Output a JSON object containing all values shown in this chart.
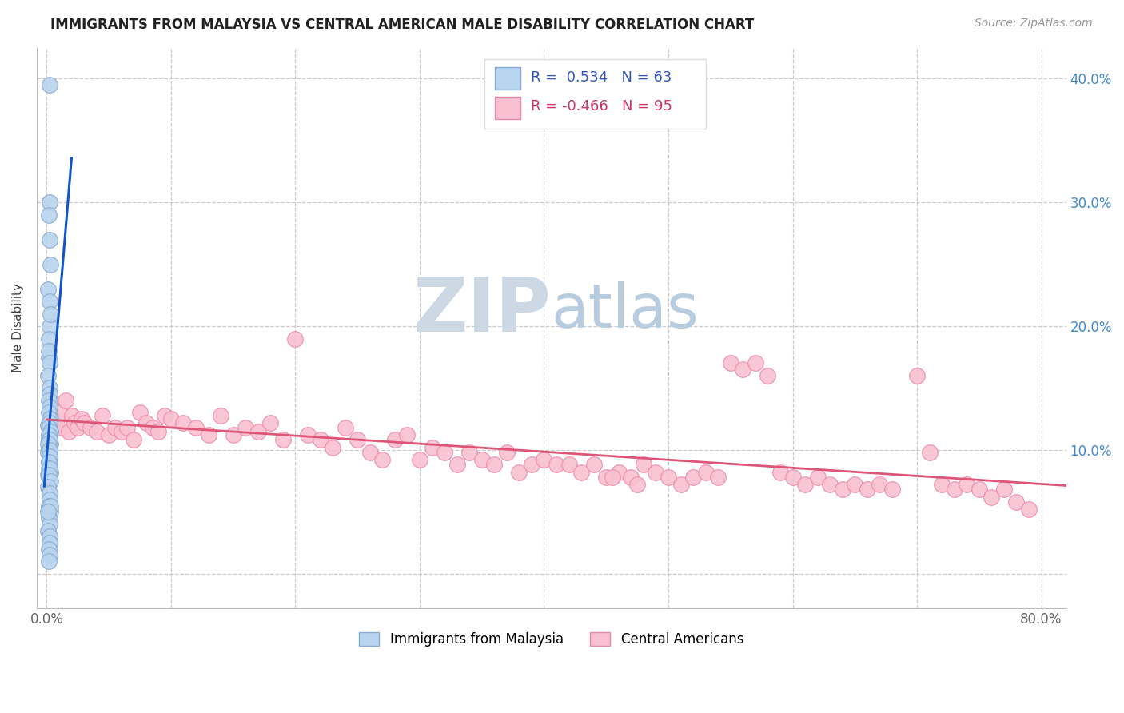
{
  "title": "IMMIGRANTS FROM MALAYSIA VS CENTRAL AMERICAN MALE DISABILITY CORRELATION CHART",
  "source": "Source: ZipAtlas.com",
  "ylabel": "Male Disability",
  "xlim": [
    -0.008,
    0.82
  ],
  "ylim": [
    -0.028,
    0.425
  ],
  "x_ticks": [
    0.0,
    0.1,
    0.2,
    0.3,
    0.4,
    0.5,
    0.6,
    0.7,
    0.8
  ],
  "y_ticks": [
    0.0,
    0.1,
    0.2,
    0.3,
    0.4
  ],
  "grid_color": "#cccccc",
  "background_color": "#ffffff",
  "malaysia_color": "#b8d4ee",
  "central_color": "#f8c0d0",
  "malaysia_edge": "#88aacc",
  "central_edge": "#ee88aa",
  "trend_blue": "#1155cc",
  "trend_blue_dash": "#88aacc",
  "trend_pink": "#dd5577",
  "wm_zip_color": "#ccd8e4",
  "wm_atlas_color": "#b8cce0",
  "malaysia_x": [
    0.0025,
    0.002,
    0.0018,
    0.0022,
    0.0015,
    0.0028,
    0.0012,
    0.002,
    0.0025,
    0.0018,
    0.003,
    0.0015,
    0.0022,
    0.001,
    0.0025,
    0.002,
    0.0018,
    0.0022,
    0.0015,
    0.0028,
    0.0012,
    0.002,
    0.0025,
    0.0018,
    0.003,
    0.0015,
    0.0022,
    0.001,
    0.0025,
    0.002,
    0.0018,
    0.0022,
    0.0015,
    0.0028,
    0.0012,
    0.002,
    0.0025,
    0.0018,
    0.003,
    0.0015,
    0.0022,
    0.001,
    0.0025,
    0.002,
    0.0018,
    0.0022,
    0.0015,
    0.0028,
    0.0012,
    0.002,
    0.0025,
    0.0018,
    0.003,
    0.0015,
    0.0022,
    0.001,
    0.0025,
    0.002,
    0.0018,
    0.0022,
    0.0015,
    0.0028,
    0.0012
  ],
  "malaysia_y": [
    0.395,
    0.27,
    0.175,
    0.3,
    0.29,
    0.25,
    0.23,
    0.22,
    0.2,
    0.19,
    0.21,
    0.18,
    0.17,
    0.16,
    0.15,
    0.145,
    0.14,
    0.135,
    0.13,
    0.125,
    0.12,
    0.115,
    0.11,
    0.108,
    0.105,
    0.102,
    0.1,
    0.098,
    0.095,
    0.092,
    0.09,
    0.088,
    0.085,
    0.082,
    0.08,
    0.125,
    0.122,
    0.118,
    0.115,
    0.112,
    0.108,
    0.105,
    0.1,
    0.095,
    0.09,
    0.085,
    0.08,
    0.075,
    0.07,
    0.065,
    0.06,
    0.055,
    0.05,
    0.045,
    0.04,
    0.035,
    0.03,
    0.025,
    0.02,
    0.015,
    0.01,
    0.055,
    0.05
  ],
  "central_x": [
    0.005,
    0.008,
    0.01,
    0.012,
    0.015,
    0.018,
    0.02,
    0.022,
    0.025,
    0.028,
    0.03,
    0.035,
    0.04,
    0.045,
    0.05,
    0.055,
    0.06,
    0.065,
    0.07,
    0.075,
    0.08,
    0.085,
    0.09,
    0.095,
    0.1,
    0.11,
    0.12,
    0.13,
    0.14,
    0.15,
    0.16,
    0.17,
    0.18,
    0.19,
    0.2,
    0.21,
    0.22,
    0.23,
    0.24,
    0.25,
    0.26,
    0.27,
    0.28,
    0.29,
    0.3,
    0.31,
    0.32,
    0.33,
    0.34,
    0.35,
    0.36,
    0.37,
    0.38,
    0.39,
    0.4,
    0.41,
    0.42,
    0.43,
    0.44,
    0.45,
    0.46,
    0.47,
    0.48,
    0.49,
    0.5,
    0.51,
    0.52,
    0.53,
    0.54,
    0.55,
    0.56,
    0.57,
    0.58,
    0.59,
    0.6,
    0.61,
    0.62,
    0.63,
    0.64,
    0.65,
    0.66,
    0.67,
    0.68,
    0.7,
    0.71,
    0.72,
    0.73,
    0.74,
    0.75,
    0.76,
    0.77,
    0.78,
    0.79,
    0.455,
    0.475
  ],
  "central_y": [
    0.125,
    0.12,
    0.13,
    0.118,
    0.14,
    0.115,
    0.128,
    0.122,
    0.118,
    0.125,
    0.122,
    0.118,
    0.115,
    0.128,
    0.112,
    0.118,
    0.115,
    0.118,
    0.108,
    0.13,
    0.122,
    0.118,
    0.115,
    0.128,
    0.125,
    0.122,
    0.118,
    0.112,
    0.128,
    0.112,
    0.118,
    0.115,
    0.122,
    0.108,
    0.19,
    0.112,
    0.108,
    0.102,
    0.118,
    0.108,
    0.098,
    0.092,
    0.108,
    0.112,
    0.092,
    0.102,
    0.098,
    0.088,
    0.098,
    0.092,
    0.088,
    0.098,
    0.082,
    0.088,
    0.092,
    0.088,
    0.088,
    0.082,
    0.088,
    0.078,
    0.082,
    0.078,
    0.088,
    0.082,
    0.078,
    0.072,
    0.078,
    0.082,
    0.078,
    0.17,
    0.165,
    0.17,
    0.16,
    0.082,
    0.078,
    0.072,
    0.078,
    0.072,
    0.068,
    0.072,
    0.068,
    0.072,
    0.068,
    0.16,
    0.098,
    0.072,
    0.068,
    0.072,
    0.068,
    0.062,
    0.068,
    0.058,
    0.052,
    0.078,
    0.072
  ]
}
